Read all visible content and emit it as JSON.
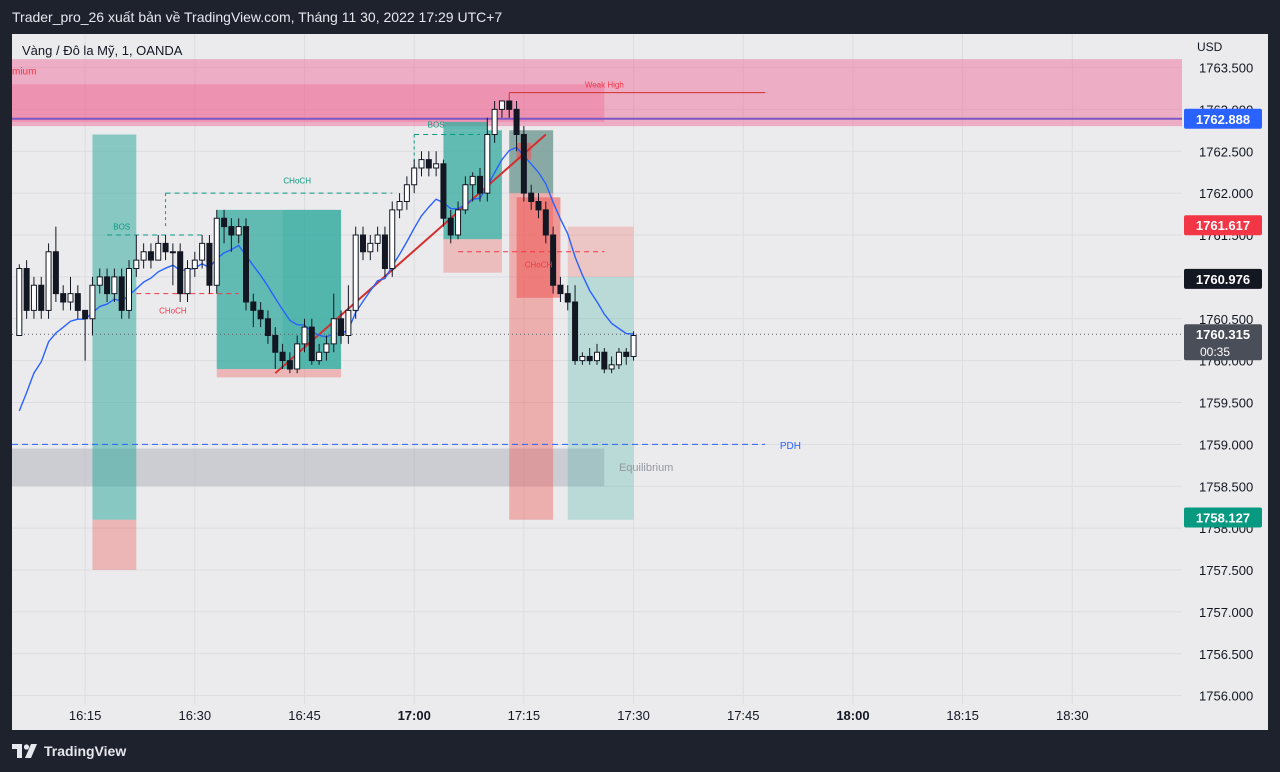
{
  "header": {
    "publisher_line": "Trader_pro_26 xuất bản về TradingView.com, Tháng 11 30, 2022 17:29 UTC+7"
  },
  "symbol": {
    "title": "Vàng / Đô la Mỹ, 1, OANDA"
  },
  "footer": {
    "brand": "TradingView",
    "logo_icon": "tradingview-logo-icon"
  },
  "colors": {
    "background": "#ebebed",
    "frame": "#1e222d",
    "up_candle": "#ffffff",
    "down_candle": "#131722",
    "premium_zone": "#f06292",
    "bull_box": "#26a69a",
    "bear_box": "#ef5350",
    "ema": "#2962ff",
    "trendline": "#d32f2f",
    "equilibrium": "#b2b5be",
    "pdh": "#2962ff"
  },
  "chart_data": {
    "type": "candlestick",
    "currency_label": "USD",
    "y_axis": {
      "ticks": [
        "1763.500",
        "1763.000",
        "1762.500",
        "1762.000",
        "1761.500",
        "1761.000",
        "1760.500",
        "1760.000",
        "1759.500",
        "1759.000",
        "1758.500",
        "1758.000",
        "1757.500",
        "1757.000",
        "1756.500",
        "1756.000"
      ],
      "range": [
        1755.9,
        1763.9
      ]
    },
    "x_axis": {
      "ticks": [
        {
          "label": "16:15",
          "bold": false
        },
        {
          "label": "16:30",
          "bold": false
        },
        {
          "label": "16:45",
          "bold": false
        },
        {
          "label": "17:00",
          "bold": true
        },
        {
          "label": "17:15",
          "bold": false
        },
        {
          "label": "17:30",
          "bold": false
        },
        {
          "label": "17:45",
          "bold": false
        },
        {
          "label": "18:00",
          "bold": true
        },
        {
          "label": "18:15",
          "bold": false
        },
        {
          "label": "18:30",
          "bold": false
        }
      ],
      "range_minutes": [
        965,
        1125
      ]
    },
    "price_badges": [
      {
        "value": "1762.888",
        "color": "#2962ff"
      },
      {
        "value": "1761.617",
        "color": "#f23645"
      },
      {
        "value": "1760.976",
        "color": "#131722"
      },
      {
        "value": "1760.315",
        "sub": "00:35",
        "color": "#4a4e59"
      },
      {
        "value": "1758.127",
        "color": "#089981"
      }
    ],
    "annotations": [
      {
        "text": "mium",
        "color": "#f23645"
      },
      {
        "text": "Weak High",
        "color": "#f23645"
      },
      {
        "text": "CHoCH",
        "color": "#089981"
      },
      {
        "text": "BOS",
        "color": "#089981"
      },
      {
        "text": "CHoCH",
        "color": "#f23645"
      },
      {
        "text": "BOS",
        "color": "#089981"
      },
      {
        "text": "CHoCH",
        "color": "#f23645"
      },
      {
        "text": "PDH",
        "color": "#2962ff"
      },
      {
        "text": "Equilibrium",
        "color": "#9598a1"
      }
    ],
    "candles": [
      [
        966,
        1760.3,
        1761.1,
        1760.3,
        1761.15
      ],
      [
        967,
        1761.1,
        1760.6,
        1760.5,
        1761.2
      ],
      [
        968,
        1760.6,
        1760.9,
        1760.5,
        1761.0
      ],
      [
        969,
        1760.9,
        1760.6,
        1760.5,
        1761.0
      ],
      [
        970,
        1760.6,
        1761.3,
        1760.5,
        1761.4
      ],
      [
        971,
        1761.3,
        1760.8,
        1760.7,
        1761.6
      ],
      [
        972,
        1760.8,
        1760.7,
        1760.6,
        1760.9
      ],
      [
        973,
        1760.7,
        1760.8,
        1760.6,
        1761.0
      ],
      [
        974,
        1760.8,
        1760.6,
        1760.5,
        1760.9
      ],
      [
        975,
        1760.6,
        1760.5,
        1760.0,
        1760.6
      ],
      [
        976,
        1760.5,
        1760.9,
        1760.3,
        1761.0
      ],
      [
        977,
        1760.9,
        1761.0,
        1760.8,
        1761.1
      ],
      [
        978,
        1761.0,
        1760.8,
        1760.7,
        1761.1
      ],
      [
        979,
        1760.8,
        1761.0,
        1760.7,
        1761.1
      ],
      [
        980,
        1761.0,
        1760.6,
        1760.5,
        1761.1
      ],
      [
        981,
        1760.6,
        1761.1,
        1760.5,
        1761.2
      ],
      [
        982,
        1761.1,
        1761.2,
        1761.0,
        1761.5
      ],
      [
        983,
        1761.2,
        1761.3,
        1761.1,
        1761.4
      ],
      [
        984,
        1761.3,
        1761.2,
        1761.1,
        1761.4
      ],
      [
        985,
        1761.2,
        1761.4,
        1761.2,
        1761.5
      ],
      [
        986,
        1761.4,
        1761.3,
        1761.2,
        1761.5
      ],
      [
        987,
        1761.3,
        1761.3,
        1760.9,
        1761.4
      ],
      [
        988,
        1761.3,
        1760.8,
        1760.7,
        1761.4
      ],
      [
        989,
        1760.8,
        1761.1,
        1760.7,
        1761.2
      ],
      [
        990,
        1761.1,
        1761.2,
        1761.0,
        1761.3
      ],
      [
        991,
        1761.2,
        1761.4,
        1761.1,
        1761.5
      ],
      [
        992,
        1761.4,
        1760.9,
        1760.8,
        1761.5
      ],
      [
        993,
        1760.9,
        1761.7,
        1760.8,
        1761.8
      ],
      [
        994,
        1761.7,
        1761.6,
        1761.4,
        1761.8
      ],
      [
        995,
        1761.6,
        1761.5,
        1761.3,
        1761.7
      ],
      [
        996,
        1761.5,
        1761.6,
        1761.4,
        1761.7
      ],
      [
        997,
        1761.6,
        1760.7,
        1760.6,
        1761.7
      ],
      [
        998,
        1760.7,
        1760.6,
        1760.4,
        1760.8
      ],
      [
        999,
        1760.6,
        1760.5,
        1760.4,
        1760.7
      ],
      [
        1000,
        1760.5,
        1760.3,
        1760.2,
        1760.6
      ],
      [
        1001,
        1760.3,
        1760.1,
        1759.9,
        1760.4
      ],
      [
        1002,
        1760.1,
        1760.0,
        1759.9,
        1760.2
      ],
      [
        1003,
        1760.0,
        1759.9,
        1759.85,
        1760.1
      ],
      [
        1004,
        1759.9,
        1760.2,
        1759.85,
        1760.3
      ],
      [
        1005,
        1760.2,
        1760.4,
        1760.1,
        1760.5
      ],
      [
        1006,
        1760.4,
        1760.0,
        1759.95,
        1760.5
      ],
      [
        1007,
        1760.0,
        1760.1,
        1759.95,
        1760.2
      ],
      [
        1008,
        1760.1,
        1760.2,
        1760.0,
        1760.3
      ],
      [
        1009,
        1760.2,
        1760.5,
        1760.1,
        1760.8
      ],
      [
        1010,
        1760.5,
        1760.3,
        1760.2,
        1760.6
      ],
      [
        1011,
        1760.3,
        1760.6,
        1760.2,
        1760.9
      ],
      [
        1012,
        1760.6,
        1761.5,
        1760.5,
        1761.6
      ],
      [
        1013,
        1761.5,
        1761.3,
        1761.2,
        1761.6
      ],
      [
        1014,
        1761.3,
        1761.4,
        1761.2,
        1761.5
      ],
      [
        1015,
        1761.4,
        1761.5,
        1761.3,
        1761.6
      ],
      [
        1016,
        1761.5,
        1761.1,
        1761.0,
        1761.6
      ],
      [
        1017,
        1761.1,
        1761.8,
        1761.0,
        1761.9
      ],
      [
        1018,
        1761.8,
        1761.9,
        1761.7,
        1762.0
      ],
      [
        1019,
        1761.9,
        1762.1,
        1761.8,
        1762.2
      ],
      [
        1020,
        1762.1,
        1762.3,
        1762.0,
        1762.4
      ],
      [
        1021,
        1762.3,
        1762.4,
        1762.2,
        1762.5
      ],
      [
        1022,
        1762.4,
        1762.3,
        1762.2,
        1762.5
      ],
      [
        1023,
        1762.3,
        1762.35,
        1762.2,
        1762.5
      ],
      [
        1024,
        1762.35,
        1761.7,
        1761.6,
        1762.4
      ],
      [
        1025,
        1761.7,
        1761.5,
        1761.4,
        1761.8
      ],
      [
        1026,
        1761.5,
        1761.8,
        1761.45,
        1761.9
      ],
      [
        1027,
        1761.8,
        1762.1,
        1761.75,
        1762.2
      ],
      [
        1028,
        1762.1,
        1762.2,
        1761.9,
        1762.25
      ],
      [
        1029,
        1762.2,
        1762.0,
        1761.9,
        1762.3
      ],
      [
        1030,
        1762.0,
        1762.7,
        1761.9,
        1762.9
      ],
      [
        1031,
        1762.7,
        1763.0,
        1762.6,
        1763.1
      ],
      [
        1032,
        1763.0,
        1763.1,
        1762.9,
        1763.1
      ],
      [
        1033,
        1763.1,
        1763.0,
        1762.9,
        1763.1
      ],
      [
        1034,
        1763.0,
        1762.7,
        1762.5,
        1763.1
      ],
      [
        1035,
        1762.7,
        1762.0,
        1761.9,
        1762.8
      ],
      [
        1036,
        1762.0,
        1761.9,
        1761.8,
        1762.1
      ],
      [
        1037,
        1761.9,
        1761.8,
        1761.7,
        1762.0
      ],
      [
        1038,
        1761.8,
        1761.5,
        1761.4,
        1761.9
      ],
      [
        1039,
        1761.5,
        1760.9,
        1760.8,
        1761.6
      ],
      [
        1040,
        1760.9,
        1760.8,
        1760.7,
        1761.0
      ],
      [
        1041,
        1760.8,
        1760.7,
        1760.6,
        1760.9
      ],
      [
        1042,
        1760.7,
        1760.0,
        1759.95,
        1760.9
      ],
      [
        1043,
        1760.0,
        1760.05,
        1759.95,
        1760.1
      ],
      [
        1044,
        1760.05,
        1760.0,
        1759.95,
        1760.15
      ],
      [
        1045,
        1760.0,
        1760.1,
        1759.95,
        1760.2
      ],
      [
        1046,
        1760.1,
        1759.9,
        1759.85,
        1760.15
      ],
      [
        1047,
        1759.9,
        1759.95,
        1759.85,
        1760.05
      ],
      [
        1048,
        1759.95,
        1760.1,
        1759.9,
        1760.15
      ],
      [
        1049,
        1760.1,
        1760.05,
        1759.95,
        1760.15
      ],
      [
        1050,
        1760.05,
        1760.3,
        1760.0,
        1760.35
      ]
    ]
  }
}
